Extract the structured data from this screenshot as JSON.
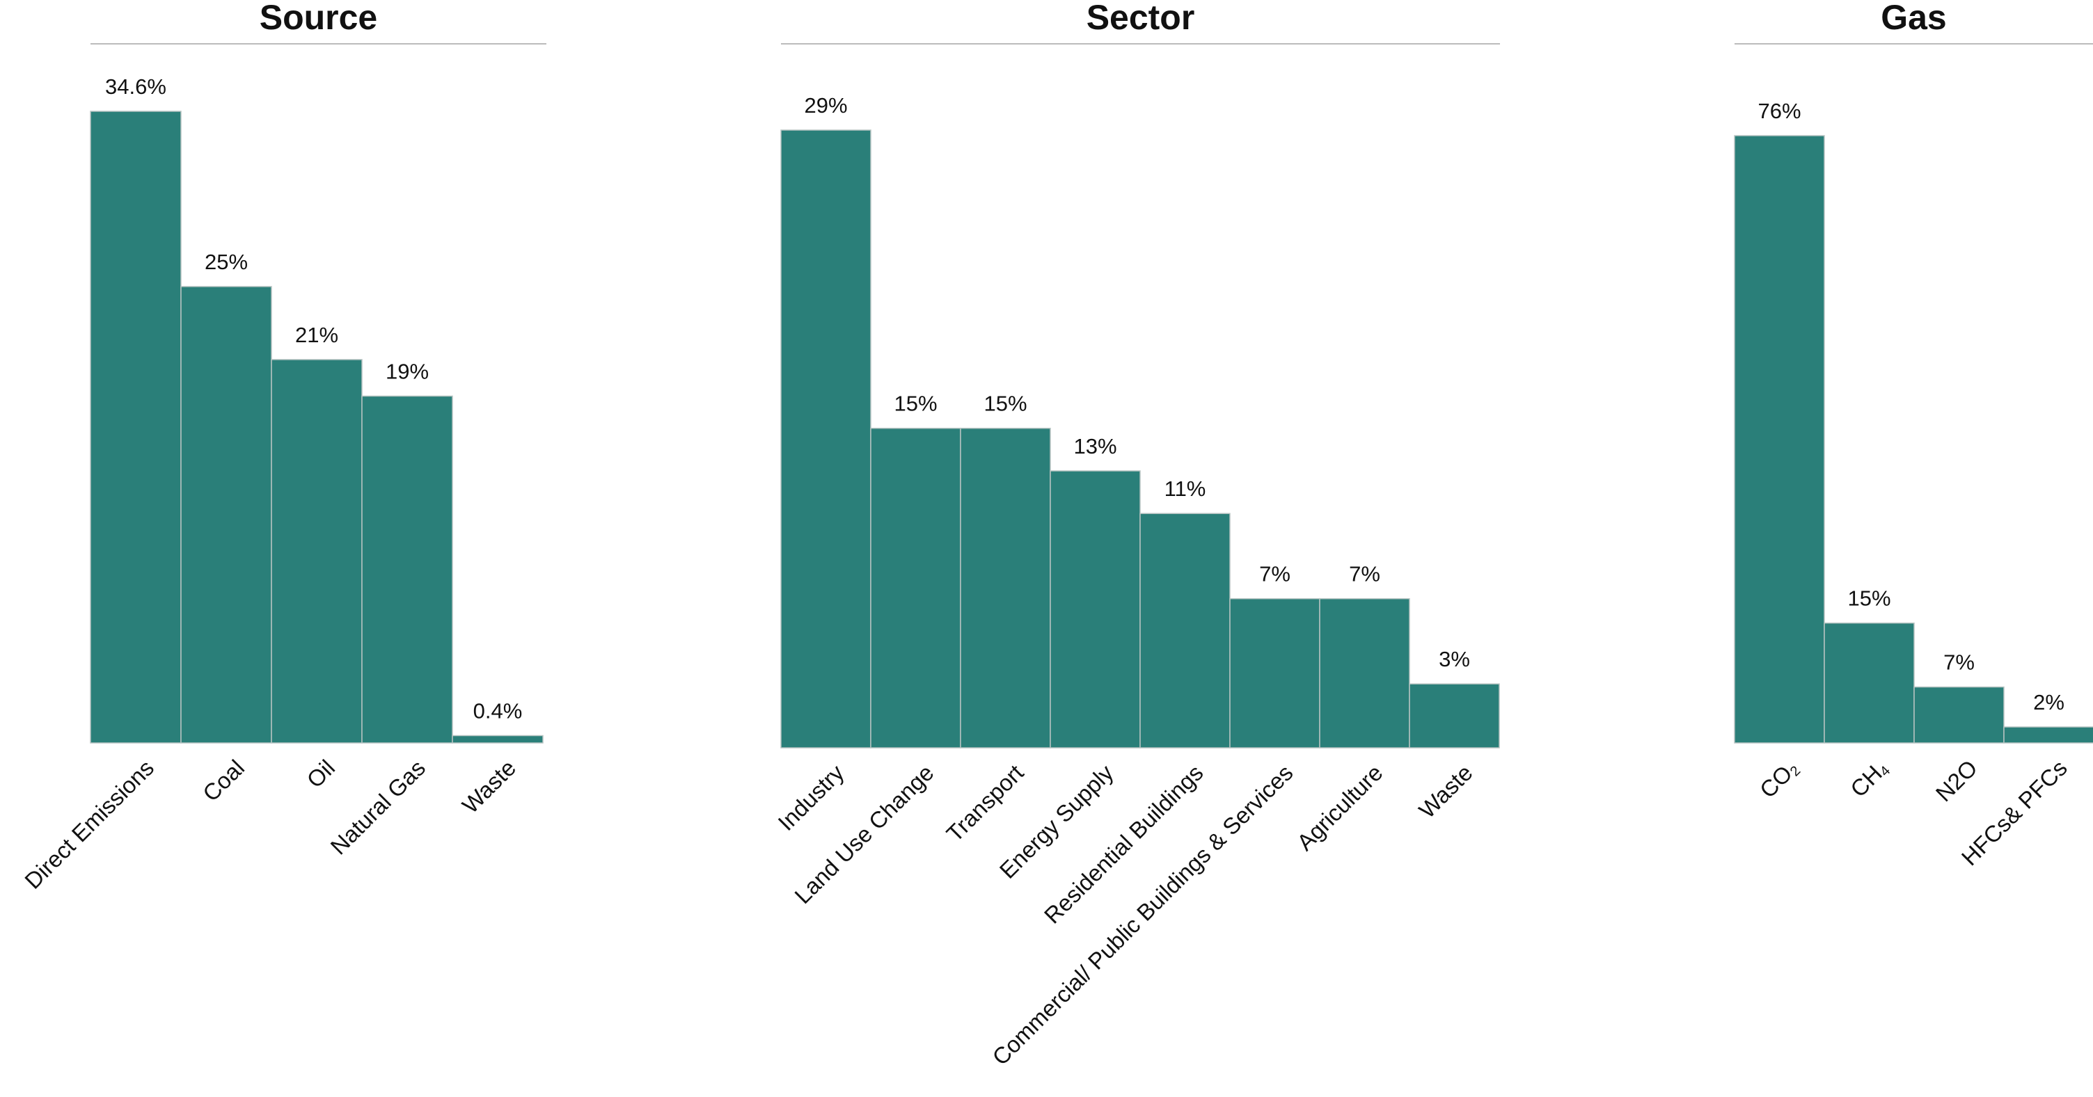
{
  "colors": {
    "bar": "#2a7f79",
    "bar_edge": "#b7c4c2",
    "rule": "#bbbbbb",
    "text": "#111111"
  },
  "chart_data": [
    {
      "type": "bar",
      "title": "Source",
      "categories": [
        "Direct Emissions",
        "Coal",
        "Oil",
        "Natural Gas",
        "Waste"
      ],
      "values": [
        34.6,
        25,
        21,
        19,
        0.4
      ],
      "data_labels": [
        "34.6%",
        "25%",
        "21%",
        "19%",
        "0.4%"
      ],
      "xlabel": "",
      "ylabel": "",
      "ylim": [
        0,
        34.6
      ],
      "grid": false
    },
    {
      "type": "bar",
      "title": "Sector",
      "categories": [
        "Industry",
        "Land Use Change",
        "Transport",
        "Energy Supply",
        "Residential Buildings",
        "Commercial/ Public Buildings & Services",
        "Agriculture",
        "Waste"
      ],
      "values": [
        29,
        15,
        15,
        13,
        11,
        7,
        7,
        3
      ],
      "data_labels": [
        "29%",
        "15%",
        "15%",
        "13%",
        "11%",
        "7%",
        "7%",
        "3%"
      ],
      "xlabel": "",
      "ylabel": "",
      "ylim": [
        0,
        29
      ],
      "grid": false
    },
    {
      "type": "bar",
      "title": "Gas",
      "categories": [
        "CO2",
        "CH4",
        "N2O",
        "HFCs& PFCs"
      ],
      "category_labels": [
        [
          {
            "t": "CO"
          },
          {
            "t": "2",
            "sub": true
          }
        ],
        [
          {
            "t": "CH"
          },
          {
            "t": "4",
            "sub": true
          }
        ],
        [
          {
            "t": "N2O"
          }
        ],
        [
          {
            "t": "HFCs& PFCs"
          }
        ]
      ],
      "values": [
        76,
        15,
        7,
        2
      ],
      "data_labels": [
        "76%",
        "15%",
        "7%",
        "2%"
      ],
      "xlabel": "",
      "ylabel": "",
      "ylim": [
        0,
        76
      ],
      "grid": false
    }
  ]
}
